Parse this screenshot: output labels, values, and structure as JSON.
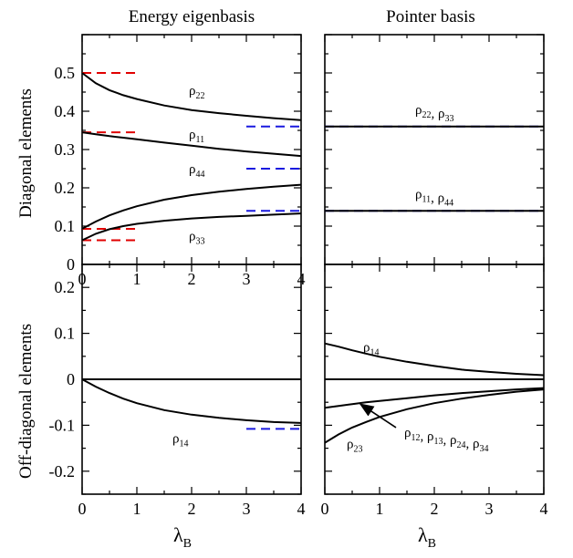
{
  "figure": {
    "xlabel": "λ",
    "xlabel_sub": "B"
  },
  "chart_data": [
    {
      "panel": "top-left",
      "type": "line",
      "title": "Energy eigenbasis",
      "ylabel": "Diagonal elements",
      "xlim": [
        0,
        4
      ],
      "ylim": [
        0,
        0.6
      ],
      "xticks": [
        "0",
        "1",
        "2",
        "3",
        "4"
      ],
      "yticks": [
        {
          "v": 0,
          "label": "0"
        },
        {
          "v": 0.1,
          "label": "0.1"
        },
        {
          "v": 0.2,
          "label": "0.2"
        },
        {
          "v": 0.3,
          "label": "0.3"
        },
        {
          "v": 0.4,
          "label": "0.4"
        },
        {
          "v": 0.5,
          "label": "0.5"
        }
      ],
      "series": [
        {
          "name": "ρ22",
          "x": [
            0,
            0.25,
            0.5,
            0.75,
            1,
            1.5,
            2,
            2.5,
            3,
            3.5,
            4
          ],
          "y": [
            0.5,
            0.473,
            0.455,
            0.442,
            0.432,
            0.415,
            0.403,
            0.395,
            0.388,
            0.382,
            0.377
          ]
        },
        {
          "name": "ρ11",
          "x": [
            0,
            0.25,
            0.5,
            0.75,
            1,
            1.5,
            2,
            2.5,
            3,
            3.5,
            4
          ],
          "y": [
            0.345,
            0.34,
            0.335,
            0.331,
            0.327,
            0.318,
            0.31,
            0.302,
            0.295,
            0.289,
            0.283
          ]
        },
        {
          "name": "ρ44",
          "x": [
            0,
            0.25,
            0.5,
            0.75,
            1,
            1.5,
            2,
            2.5,
            3,
            3.5,
            4
          ],
          "y": [
            0.093,
            0.112,
            0.128,
            0.141,
            0.152,
            0.169,
            0.181,
            0.19,
            0.197,
            0.203,
            0.208
          ]
        },
        {
          "name": "ρ33",
          "x": [
            0,
            0.25,
            0.5,
            0.75,
            1,
            1.5,
            2,
            2.5,
            3,
            3.5,
            4
          ],
          "y": [
            0.063,
            0.08,
            0.092,
            0.1,
            0.106,
            0.114,
            0.12,
            0.124,
            0.127,
            0.13,
            0.133
          ]
        }
      ],
      "reference_lines": [
        {
          "color": "#e00000",
          "x": [
            0,
            1
          ],
          "y": 0.5
        },
        {
          "color": "#e00000",
          "x": [
            0,
            1
          ],
          "y": 0.345
        },
        {
          "color": "#e00000",
          "x": [
            0,
            1
          ],
          "y": 0.093
        },
        {
          "color": "#e00000",
          "x": [
            0,
            1
          ],
          "y": 0.063
        },
        {
          "color": "#1a1adf",
          "x": [
            3,
            4
          ],
          "y": 0.36
        },
        {
          "color": "#1a1adf",
          "x": [
            3,
            4
          ],
          "y": 0.25
        },
        {
          "color": "#1a1adf",
          "x": [
            3,
            4
          ],
          "y": 0.14
        }
      ],
      "curve_labels": [
        {
          "base": "ρ",
          "sub": "22",
          "x": 1.95,
          "y": 0.455
        },
        {
          "base": "ρ",
          "sub": "11",
          "x": 1.95,
          "y": 0.34
        },
        {
          "base": "ρ",
          "sub": "44",
          "x": 1.95,
          "y": 0.25
        },
        {
          "base": "ρ",
          "sub": "33",
          "x": 1.95,
          "y": 0.075
        }
      ]
    },
    {
      "panel": "top-right",
      "type": "line",
      "title": "Pointer basis",
      "xlim": [
        0,
        4
      ],
      "ylim": [
        0,
        0.6
      ],
      "series": [
        {
          "name": "ρ22, ρ33",
          "x": [
            0,
            4
          ],
          "y": [
            0.36,
            0.36
          ]
        },
        {
          "name": "ρ11, ρ44",
          "x": [
            0,
            4
          ],
          "y": [
            0.14,
            0.14
          ]
        }
      ],
      "reference_lines": [
        {
          "color": "#1a1adf",
          "x": [
            0,
            4
          ],
          "y": 0.36
        },
        {
          "color": "#1a1adf",
          "x": [
            0,
            4
          ],
          "y": 0.14
        }
      ],
      "curve_labels": [
        {
          "parts": [
            {
              "base": "ρ",
              "sub": "22"
            },
            {
              "base": ", ρ",
              "sub": "33"
            }
          ],
          "x": 1.65,
          "y": 0.405
        },
        {
          "parts": [
            {
              "base": "ρ",
              "sub": "11"
            },
            {
              "base": ", ρ",
              "sub": "44"
            }
          ],
          "x": 1.65,
          "y": 0.185
        }
      ]
    },
    {
      "panel": "bottom-left",
      "type": "line",
      "ylabel": "Off-diagonal elements",
      "xlim": [
        0,
        4
      ],
      "ylim": [
        -0.25,
        0.25
      ],
      "xticks": [
        "0",
        "1",
        "2",
        "3",
        "4"
      ],
      "yticks": [
        {
          "v": -0.2,
          "label": "-0.2"
        },
        {
          "v": -0.1,
          "label": "-0.1"
        },
        {
          "v": 0,
          "label": "0"
        },
        {
          "v": 0.1,
          "label": "0.1"
        },
        {
          "v": 0.2,
          "label": "0.2"
        }
      ],
      "series": [
        {
          "name": "zero",
          "x": [
            0,
            4
          ],
          "y": [
            0,
            0
          ]
        },
        {
          "name": "ρ14",
          "x": [
            0,
            0.25,
            0.5,
            0.75,
            1,
            1.5,
            2,
            2.5,
            3,
            3.5,
            4
          ],
          "y": [
            0,
            -0.016,
            -0.03,
            -0.042,
            -0.052,
            -0.067,
            -0.077,
            -0.084,
            -0.089,
            -0.093,
            -0.095
          ]
        }
      ],
      "reference_lines": [
        {
          "color": "#1a1adf",
          "x": [
            3,
            4
          ],
          "y": -0.108
        }
      ],
      "curve_labels": [
        {
          "base": "ρ",
          "sub": "14",
          "x": 1.65,
          "y": -0.128
        }
      ]
    },
    {
      "panel": "bottom-right",
      "type": "line",
      "xlim": [
        0,
        4
      ],
      "ylim": [
        -0.25,
        0.25
      ],
      "xticks": [
        "0",
        "1",
        "2",
        "3",
        "4"
      ],
      "series": [
        {
          "name": "zero",
          "x": [
            0,
            4
          ],
          "y": [
            0,
            0
          ]
        },
        {
          "name": "ρ14",
          "x": [
            0,
            0.25,
            0.5,
            0.75,
            1,
            1.5,
            2,
            2.5,
            3,
            3.5,
            4
          ],
          "y": [
            0.078,
            0.071,
            0.063,
            0.056,
            0.049,
            0.038,
            0.029,
            0.021,
            0.016,
            0.012,
            0.009
          ]
        },
        {
          "name": "ρ12, ρ13, ρ24, ρ34",
          "x": [
            0,
            0.25,
            0.5,
            0.75,
            1,
            1.5,
            2,
            2.5,
            3,
            3.5,
            4
          ],
          "y": [
            -0.062,
            -0.058,
            -0.054,
            -0.05,
            -0.047,
            -0.041,
            -0.035,
            -0.03,
            -0.026,
            -0.022,
            -0.019
          ]
        },
        {
          "name": "ρ23",
          "x": [
            0,
            0.25,
            0.5,
            0.75,
            1,
            1.5,
            2,
            2.5,
            3,
            3.5,
            4
          ],
          "y": [
            -0.138,
            -0.12,
            -0.105,
            -0.093,
            -0.082,
            -0.065,
            -0.052,
            -0.042,
            -0.034,
            -0.027,
            -0.022
          ]
        }
      ],
      "curve_labels": [
        {
          "base": "ρ",
          "sub": "14",
          "x": 0.7,
          "y": 0.07
        },
        {
          "base": "ρ",
          "sub": "23",
          "x": 0.4,
          "y": -0.14
        },
        {
          "parts": [
            {
              "base": "ρ",
              "sub": "12"
            },
            {
              "base": ", ρ",
              "sub": "13"
            },
            {
              "base": ", ρ",
              "sub": "24"
            },
            {
              "base": ", ρ",
              "sub": "34"
            }
          ],
          "x": 1.45,
          "y": -0.115
        }
      ],
      "annotation_arrow": {
        "from": [
          1.3,
          -0.105
        ],
        "to": [
          0.65,
          -0.054
        ]
      }
    }
  ]
}
